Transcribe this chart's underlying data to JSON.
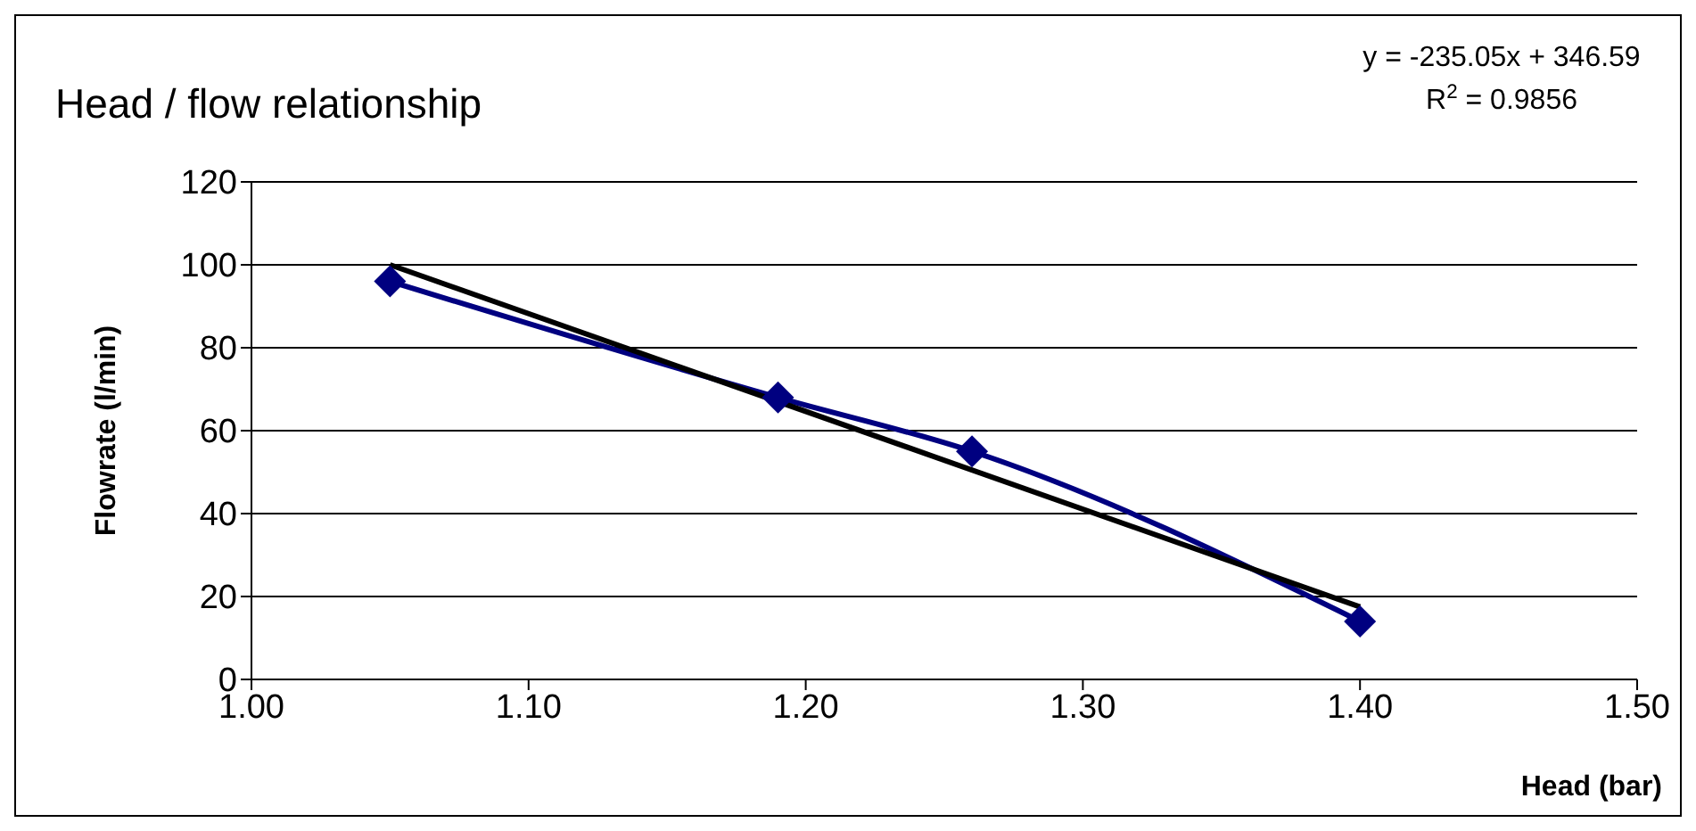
{
  "chart_data": {
    "type": "line",
    "title": "Head / flow relationship",
    "xlabel": "Head (bar)",
    "ylabel": "Flowrate (l/min)",
    "annotations": [
      "y = -235.05x + 346.59",
      "R$^{2}$ = 0.9856"
    ],
    "series": [
      {
        "color": "#000080",
        "x": [
          1.05,
          1.19,
          1.26,
          1.4
        ],
        "values": [
          96,
          68,
          55,
          14
        ]
      },
      {
        "color": "#000000",
        "x": [
          1.05,
          1.4
        ],
        "values": [
          100,
          17.5
        ],
        "marker": "none"
      }
    ],
    "xlim": [
      1,
      1.5
    ],
    "xticks": [
      {
        "value": 1,
        "label": "1.00"
      },
      {
        "value": 1.1,
        "label": "1.10"
      },
      {
        "value": 1.2,
        "label": "1.20"
      },
      {
        "value": 1.3,
        "label": "1.30"
      },
      {
        "value": 1.4,
        "label": "1.40"
      },
      {
        "value": 1.5,
        "label": "1.50"
      }
    ],
    "ylim": [
      0,
      120
    ],
    "yticks": [
      0,
      20,
      40,
      60,
      80,
      100,
      120
    ],
    "grid": "y",
    "marker": "diamond",
    "line_style": "solid"
  }
}
